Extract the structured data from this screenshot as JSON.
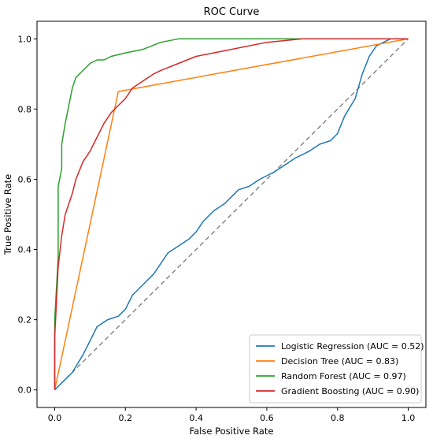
{
  "chart_data": {
    "type": "line",
    "title": "ROC Curve",
    "xlabel": "False Positive Rate",
    "ylabel": "True Positive Rate",
    "xlim": [
      -0.05,
      1.05
    ],
    "ylim": [
      -0.05,
      1.05
    ],
    "x_ticks": [
      "0.0",
      "0.2",
      "0.4",
      "0.6",
      "0.8",
      "1.0"
    ],
    "y_ticks": [
      "0.0",
      "0.2",
      "0.4",
      "0.6",
      "0.8",
      "1.0"
    ],
    "grid": false,
    "legend_position": "lower-right",
    "diagonal": {
      "x": [
        0,
        1
      ],
      "y": [
        0,
        1
      ],
      "style": "dashed",
      "color": "#808080"
    },
    "series": [
      {
        "name": "Logistic Regression (AUC = 0.52)",
        "color": "#1f77b4",
        "x": [
          0.0,
          0.02,
          0.05,
          0.08,
          0.1,
          0.12,
          0.15,
          0.18,
          0.2,
          0.22,
          0.25,
          0.28,
          0.3,
          0.32,
          0.35,
          0.38,
          0.4,
          0.42,
          0.45,
          0.48,
          0.5,
          0.52,
          0.55,
          0.58,
          0.6,
          0.62,
          0.65,
          0.68,
          0.7,
          0.72,
          0.75,
          0.78,
          0.8,
          0.82,
          0.85,
          0.87,
          0.89,
          0.91,
          0.93,
          0.95,
          1.0
        ],
        "y": [
          0.0,
          0.02,
          0.05,
          0.1,
          0.14,
          0.18,
          0.2,
          0.21,
          0.23,
          0.27,
          0.3,
          0.33,
          0.36,
          0.39,
          0.41,
          0.43,
          0.45,
          0.48,
          0.51,
          0.53,
          0.55,
          0.57,
          0.58,
          0.6,
          0.61,
          0.62,
          0.64,
          0.66,
          0.67,
          0.68,
          0.7,
          0.71,
          0.73,
          0.78,
          0.83,
          0.9,
          0.95,
          0.98,
          0.99,
          1.0,
          1.0
        ]
      },
      {
        "name": "Decision Tree (AUC = 0.83)",
        "color": "#ff7f0e",
        "x": [
          0.0,
          0.18,
          1.0
        ],
        "y": [
          0.0,
          0.85,
          1.0
        ]
      },
      {
        "name": "Random Forest (AUC = 0.97)",
        "color": "#2ca02c",
        "x": [
          0.0,
          0.0,
          0.01,
          0.01,
          0.02,
          0.02,
          0.03,
          0.04,
          0.05,
          0.06,
          0.08,
          0.1,
          0.12,
          0.14,
          0.16,
          0.2,
          0.25,
          0.3,
          0.35,
          0.5,
          0.7,
          0.8
        ],
        "y": [
          0.0,
          0.2,
          0.38,
          0.58,
          0.63,
          0.7,
          0.76,
          0.81,
          0.86,
          0.89,
          0.91,
          0.93,
          0.94,
          0.94,
          0.95,
          0.96,
          0.97,
          0.99,
          1.0,
          1.0,
          1.0,
          1.0
        ]
      },
      {
        "name": "Gradient Boosting (AUC = 0.90)",
        "color": "#d62728",
        "x": [
          0.0,
          0.0,
          0.01,
          0.02,
          0.03,
          0.04,
          0.05,
          0.06,
          0.08,
          0.1,
          0.12,
          0.14,
          0.16,
          0.18,
          0.2,
          0.22,
          0.25,
          0.28,
          0.3,
          0.35,
          0.4,
          0.45,
          0.5,
          0.6,
          0.7,
          0.8,
          0.9,
          1.0
        ],
        "y": [
          0.0,
          0.15,
          0.35,
          0.44,
          0.5,
          0.53,
          0.56,
          0.6,
          0.65,
          0.68,
          0.72,
          0.76,
          0.79,
          0.81,
          0.83,
          0.86,
          0.88,
          0.9,
          0.91,
          0.93,
          0.95,
          0.96,
          0.97,
          0.99,
          1.0,
          1.0,
          1.0,
          1.0
        ]
      }
    ]
  }
}
